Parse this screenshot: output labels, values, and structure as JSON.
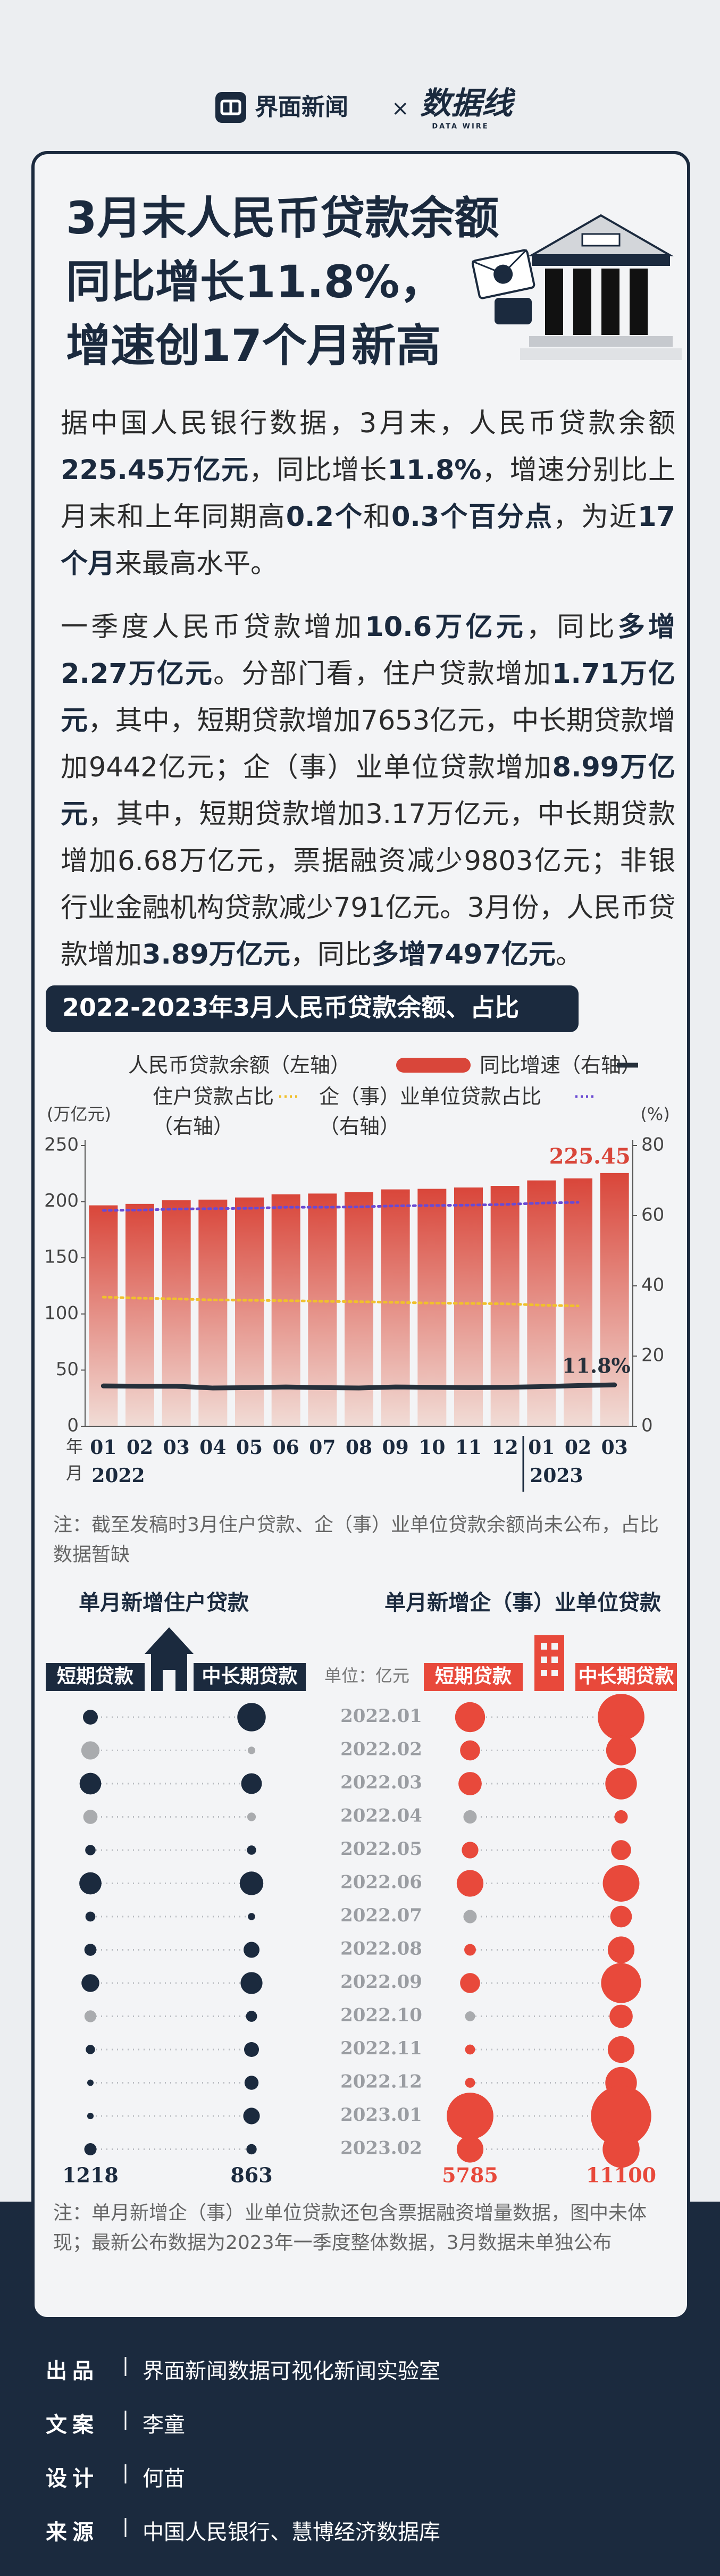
{
  "header": {
    "brand": "界面新闻",
    "separator": "×",
    "partner": "数据线",
    "partner_sub": "DATA WIRE"
  },
  "title_lines": [
    "3月末人民币贷款余额",
    "同比增长11.8%，",
    "增速创17个月新高"
  ],
  "paragraphs": [
    [
      {
        "text": "据中国人民银行数据，3月末，人民币贷款余额",
        "bold": false
      },
      {
        "text": "225.45万亿元",
        "bold": true
      },
      {
        "text": "，同比增长",
        "bold": false
      },
      {
        "text": "11.8%",
        "bold": true
      },
      {
        "text": "，增速分别比上月末和上年同期高",
        "bold": false
      },
      {
        "text": "0.2个",
        "bold": true
      },
      {
        "text": "和",
        "bold": false
      },
      {
        "text": "0.3个百分点",
        "bold": true
      },
      {
        "text": "，为近",
        "bold": false
      },
      {
        "text": "17个月",
        "bold": true
      },
      {
        "text": "来最高水平。",
        "bold": false
      }
    ],
    [
      {
        "text": "一季度人民币贷款增加",
        "bold": false
      },
      {
        "text": "10.6万亿元",
        "bold": true
      },
      {
        "text": "，同比",
        "bold": false
      },
      {
        "text": "多增2.27万亿元",
        "bold": true
      },
      {
        "text": "。分部门看，住户贷款增加",
        "bold": false
      },
      {
        "text": "1.71万亿元",
        "bold": true
      },
      {
        "text": "，其中，短期贷款增加7653亿元，中长期贷款增加9442亿元；企（事）业单位贷款增加",
        "bold": false
      },
      {
        "text": "8.99万亿元",
        "bold": true
      },
      {
        "text": "，其中，短期贷款增加3.17万亿元，中长期贷款增加6.68万亿元，票据融资减少9803亿元；非银行业金融机构贷款减少791亿元。3月份，人民币贷款增加",
        "bold": false
      },
      {
        "text": "3.89万亿元",
        "bold": true
      },
      {
        "text": "，同比",
        "bold": false
      },
      {
        "text": "多增7497亿元",
        "bold": true
      },
      {
        "text": "。",
        "bold": false
      }
    ]
  ],
  "chart_data": [
    {
      "type": "combo",
      "title": "2022-2023年3月人民币贷款余额、占比",
      "categories": [
        "01",
        "02",
        "03",
        "04",
        "05",
        "06",
        "07",
        "08",
        "09",
        "10",
        "11",
        "12",
        "01",
        "02",
        "03"
      ],
      "year_groups": [
        {
          "label": "2022",
          "start": 0
        },
        {
          "label": "2023",
          "start": 12
        }
      ],
      "x_unit_labels": [
        "年",
        "月"
      ],
      "ylabel": "(万亿元)",
      "y2label": "(%)",
      "ylim": [
        0,
        250
      ],
      "yticks": [
        0,
        50,
        100,
        150,
        200,
        250
      ],
      "y2lim": [
        0,
        80
      ],
      "y2ticks": [
        0,
        20,
        40,
        60,
        80
      ],
      "grid": false,
      "series": [
        {
          "name": "人民币贷款余额（左轴）",
          "kind": "bar",
          "color": "#d9463a",
          "values": [
            196.7,
            198.0,
            201.2,
            201.8,
            203.7,
            206.5,
            207.2,
            208.4,
            210.9,
            211.4,
            212.6,
            214.0,
            218.9,
            220.7,
            225.45
          ],
          "value_labels": [
            null,
            null,
            null,
            null,
            null,
            null,
            null,
            null,
            null,
            null,
            null,
            null,
            null,
            null,
            "225.45"
          ]
        },
        {
          "name": "同比增速（右轴）",
          "kind": "line",
          "axis": "y2",
          "color": "#26303b",
          "values": [
            11.5,
            11.4,
            11.4,
            10.9,
            11.0,
            11.2,
            11.0,
            10.9,
            11.2,
            11.1,
            11.0,
            11.1,
            11.3,
            11.6,
            11.8
          ],
          "value_labels": [
            null,
            null,
            null,
            null,
            null,
            null,
            null,
            null,
            null,
            null,
            null,
            null,
            null,
            null,
            "11.8%"
          ]
        },
        {
          "name": "住户贷款占比（右轴）",
          "kind": "dotted",
          "axis": "y2",
          "color": "#f0c02c",
          "values": [
            36.8,
            36.5,
            36.3,
            36.0,
            35.9,
            35.8,
            35.6,
            35.5,
            35.3,
            35.1,
            35.0,
            34.9,
            34.5,
            34.3,
            null
          ]
        },
        {
          "name": "企（事）业单位贷款占比（右轴）",
          "kind": "dotted",
          "axis": "y2",
          "color": "#6a4ad3",
          "values": [
            61.5,
            61.6,
            61.9,
            62.0,
            62.1,
            62.4,
            62.4,
            62.5,
            62.8,
            62.9,
            63.0,
            63.2,
            63.6,
            63.8,
            null
          ]
        }
      ]
    },
    {
      "type": "dot",
      "unit": "单位：亿元",
      "negative_color": "#a9abae",
      "categories": [
        "2022.01",
        "2022.02",
        "2022.03",
        "2022.04",
        "2022.05",
        "2022.06",
        "2022.07",
        "2022.08",
        "2022.09",
        "2022.10",
        "2022.11",
        "2022.12",
        "2023.01",
        "2023.02"
      ],
      "panels": [
        {
          "title": "单月新增住户贷款",
          "color": "#1b2a3e",
          "series": [
            {
              "name": "短期贷款",
              "values": [
                1800,
                -2700,
                3800,
                -1650,
                880,
                4000,
                800,
                1180,
                2590,
                -1150,
                700,
                300,
                340,
                1218
              ]
            },
            {
              "name": "中长期贷款",
              "values": [
                6560,
                -460,
                3480,
                -600,
                700,
                4530,
                420,
                2060,
                3910,
                1000,
                1800,
                1600,
                2230,
                863
              ]
            }
          ]
        },
        {
          "title": "单月新增企（事）业单位贷款",
          "color": "#e8493b",
          "series": [
            {
              "name": "短期贷款",
              "values": [
                7300,
                3250,
                4400,
                -1450,
                2250,
                5800,
                -1450,
                1100,
                3250,
                -810,
                810,
                810,
                17700,
                5785
              ]
            },
            {
              "name": "中长期贷款",
              "values": [
                17700,
                7300,
                8100,
                1450,
                3250,
                10900,
                3800,
                5800,
                13000,
                4400,
                5800,
                8100,
                29600,
                11100
              ]
            }
          ]
        }
      ]
    }
  ],
  "notes": [
    "注：截至发稿时3月住户贷款、企（事）业单位贷款余额尚未公布，占比数据暂缺",
    "注：单月新增企（事）业单位贷款还包含票据融资增量数据，图中未体现；最新公布数据为2023年一季度整体数据，3月数据未单独公布"
  ],
  "credits": [
    {
      "role": "出品",
      "name": "界面新闻数据可视化新闻实验室"
    },
    {
      "role": "文案",
      "name": "李童"
    },
    {
      "role": "设计",
      "name": "何苗"
    },
    {
      "role": "来源",
      "name": "中国人民银行、慧博经济数据库"
    }
  ]
}
